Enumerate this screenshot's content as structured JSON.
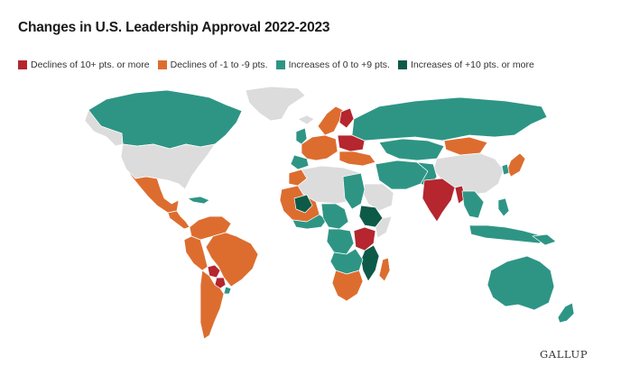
{
  "title": "Changes in U.S. Leadership Approval 2022-2023",
  "legend": [
    {
      "label": "Declines of 10+ pts. or more",
      "color": "#b5262e"
    },
    {
      "label": "Declines of -1 to -9 pts.",
      "color": "#dd6d2f"
    },
    {
      "label": "Increases of 0 to +9 pts.",
      "color": "#2e9585"
    },
    {
      "label": "Increases of +10 pts. or more",
      "color": "#0e5a48"
    }
  ],
  "no_data_color": "#dcdcdc",
  "brand": "GALLUP"
}
